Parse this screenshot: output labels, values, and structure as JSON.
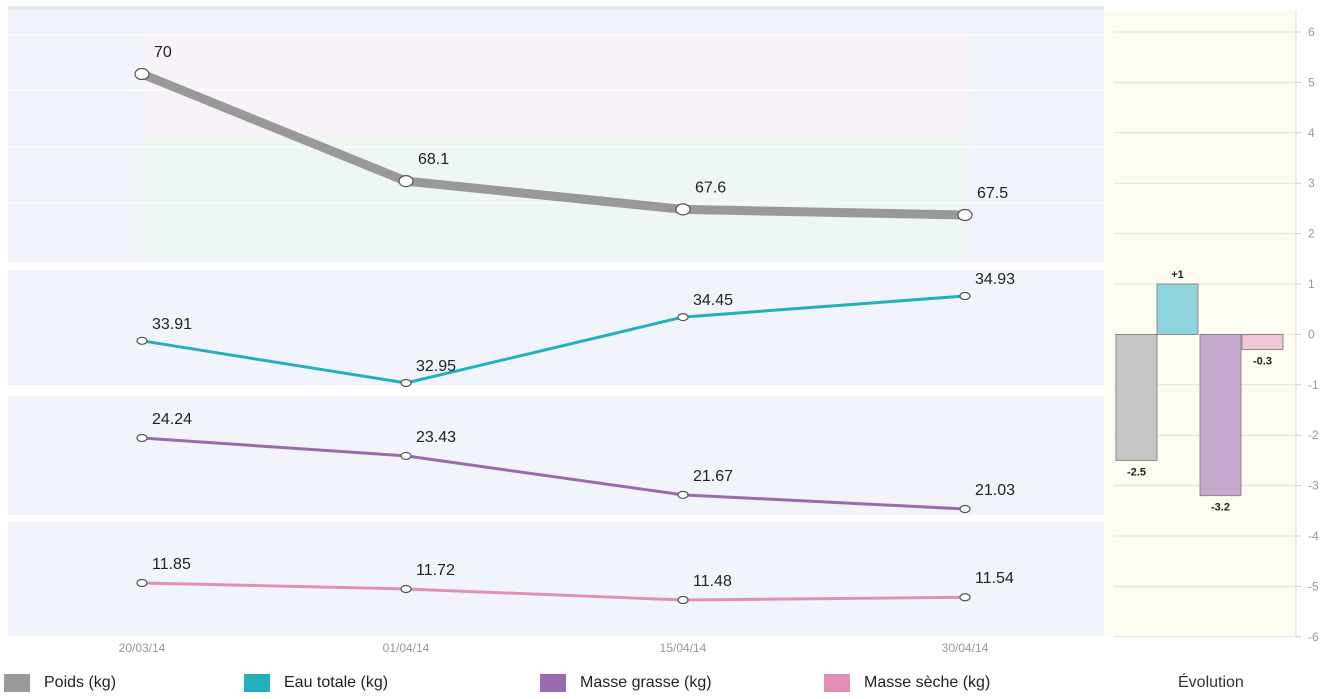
{
  "chart_data": {
    "type": "line",
    "x": [
      "20/03/14",
      "01/04/14",
      "15/04/14",
      "30/04/14"
    ],
    "series": [
      {
        "name": "Poids (kg)",
        "color": "#999999",
        "values": [
          70,
          68.1,
          67.6,
          67.5
        ],
        "labels": [
          "70",
          "68.1",
          "67.6",
          "67.5"
        ]
      },
      {
        "name": "Eau totale (kg)",
        "color": "#22b0bc",
        "values": [
          33.91,
          32.95,
          34.45,
          34.93
        ],
        "labels": [
          "33.91",
          "32.95",
          "34.45",
          "34.93"
        ]
      },
      {
        "name": "Masse grasse (kg)",
        "color": "#9b6bb0",
        "values": [
          24.24,
          23.43,
          21.67,
          21.03
        ],
        "labels": [
          "24.24",
          "23.43",
          "21.67",
          "21.03"
        ]
      },
      {
        "name": "Masse sèche (kg)",
        "color": "#e090b8",
        "values": [
          11.85,
          11.72,
          11.48,
          11.54
        ],
        "labels": [
          "11.85",
          "11.72",
          "11.48",
          "11.54"
        ]
      }
    ],
    "evolution": {
      "title": "Évolution",
      "yticks": [
        "6",
        "5",
        "4",
        "3",
        "2",
        "1",
        "0",
        "-1",
        "-2",
        "-3",
        "-4",
        "-5",
        "-6"
      ],
      "ylim": [
        -6,
        6
      ],
      "bars": [
        {
          "series": "Poids (kg)",
          "value": -2.5,
          "label": "-2.5",
          "color": "#c6c6c6"
        },
        {
          "series": "Eau totale (kg)",
          "value": 1,
          "label": "+1",
          "color": "#8fd3dc"
        },
        {
          "series": "Masse grasse (kg)",
          "value": -3.2,
          "label": "-3.2",
          "color": "#c7a9cf"
        },
        {
          "series": "Masse sèche (kg)",
          "value": -0.3,
          "label": "-0.3",
          "color": "#f1c6d6"
        }
      ]
    },
    "legend_position": "bottom",
    "grid": true
  }
}
